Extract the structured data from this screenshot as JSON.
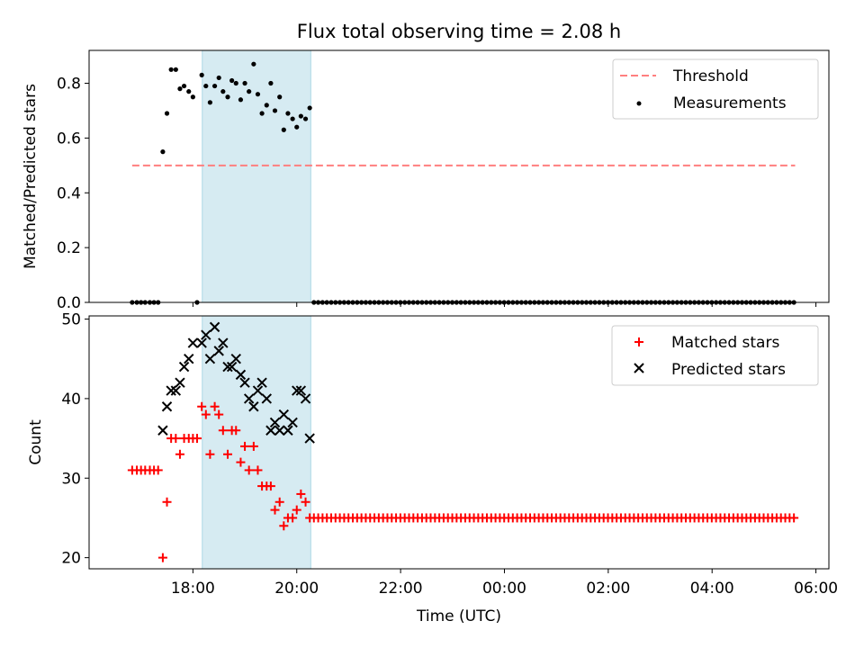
{
  "title": "Flux total observing time = 2.08 h",
  "colors": {
    "threshold": "#ff7f7f",
    "measurements": "#000000",
    "matched": "#ff0000",
    "predicted": "#000000",
    "span": "#add8e6"
  },
  "chart_data": [
    {
      "type": "scatter",
      "ylabel": "Matched/Predicted stars",
      "ylim": [
        0,
        0.92
      ],
      "yticks": [
        0.0,
        0.2,
        0.4,
        0.6,
        0.8
      ],
      "ytick_labels": [
        "0.0",
        "0.2",
        "0.4",
        "0.6",
        "0.8"
      ],
      "highlight_span": [
        18.18,
        20.27
      ],
      "legend": {
        "placement": "top-right",
        "entries": [
          "Threshold",
          "Measurements"
        ]
      },
      "threshold": {
        "name": "Threshold",
        "y": 0.5,
        "x_start": 16.83,
        "x_end": 29.6
      },
      "series": [
        {
          "name": "Measurements",
          "x": [
            16.83,
            16.92,
            17.0,
            17.08,
            17.17,
            17.25,
            17.33,
            17.42,
            17.5,
            17.58,
            17.67,
            17.75,
            17.83,
            17.92,
            18.0,
            18.08,
            18.17,
            18.25,
            18.33,
            18.42,
            18.5,
            18.58,
            18.67,
            18.75,
            18.83,
            18.92,
            19.0,
            19.08,
            19.17,
            19.25,
            19.33,
            19.42,
            19.5,
            19.58,
            19.67,
            19.75,
            19.83,
            19.92,
            20.0,
            20.08,
            20.17,
            20.25
          ],
          "y": [
            0.0,
            0.0,
            0.0,
            0.0,
            0.0,
            0.0,
            0.0,
            0.55,
            0.69,
            0.85,
            0.85,
            0.78,
            0.79,
            0.77,
            0.75,
            0.0,
            0.83,
            0.79,
            0.73,
            0.79,
            0.82,
            0.77,
            0.75,
            0.81,
            0.8,
            0.74,
            0.8,
            0.77,
            0.87,
            0.76,
            0.69,
            0.72,
            0.8,
            0.7,
            0.75,
            0.63,
            0.69,
            0.67,
            0.64,
            0.68,
            0.67,
            0.71
          ],
          "tail_zero_from": 20.33,
          "tail_zero_to": 29.58,
          "tail_step": 0.0833
        }
      ]
    },
    {
      "type": "scatter",
      "ylabel": "Count",
      "xlabel": "Time (UTC)",
      "ylim": [
        18.6,
        50.4
      ],
      "yticks": [
        20,
        30,
        40,
        50
      ],
      "ytick_labels": [
        "20",
        "30",
        "40",
        "50"
      ],
      "xlim": [
        16.0,
        30.25
      ],
      "xticks": [
        18,
        20,
        22,
        24,
        26,
        28,
        30
      ],
      "xtick_labels": [
        "18:00",
        "20:00",
        "22:00",
        "00:00",
        "02:00",
        "04:00",
        "06:00"
      ],
      "highlight_span": [
        18.18,
        20.27
      ],
      "legend": {
        "placement": "top-right",
        "entries": [
          "Matched stars",
          "Predicted stars"
        ]
      },
      "series": [
        {
          "name": "Matched stars",
          "marker": "plus",
          "x": [
            16.83,
            16.92,
            17.0,
            17.08,
            17.17,
            17.25,
            17.33,
            17.42,
            17.5,
            17.58,
            17.67,
            17.75,
            17.83,
            17.92,
            18.0,
            18.08,
            18.17,
            18.25,
            18.33,
            18.42,
            18.5,
            18.58,
            18.67,
            18.75,
            18.83,
            18.92,
            19.0,
            19.08,
            19.17,
            19.25,
            19.33,
            19.42,
            19.5,
            19.58,
            19.67,
            19.75,
            19.83,
            19.92,
            20.0,
            20.08,
            20.17,
            20.25
          ],
          "y": [
            31,
            31,
            31,
            31,
            31,
            31,
            31,
            20,
            27,
            35,
            35,
            33,
            35,
            35,
            35,
            35,
            39,
            38,
            33,
            39,
            38,
            36,
            33,
            36,
            36,
            32,
            34,
            31,
            34,
            31,
            29,
            29,
            29,
            26,
            27,
            24,
            25,
            25,
            26,
            28,
            27,
            25
          ],
          "tail_value": 25,
          "tail_from": 20.33,
          "tail_to": 29.58,
          "tail_step": 0.0833
        },
        {
          "name": "Predicted stars",
          "marker": "x",
          "x": [
            17.42,
            17.5,
            17.58,
            17.67,
            17.75,
            17.83,
            17.92,
            18.0,
            18.17,
            18.25,
            18.33,
            18.42,
            18.5,
            18.58,
            18.67,
            18.75,
            18.83,
            18.92,
            19.0,
            19.08,
            19.17,
            19.25,
            19.33,
            19.42,
            19.5,
            19.58,
            19.67,
            19.75,
            19.83,
            19.92,
            20.0,
            20.08,
            20.17,
            20.25
          ],
          "y": [
            36,
            39,
            41,
            41,
            42,
            44,
            45,
            47,
            47,
            48,
            45,
            49,
            46,
            47,
            44,
            44,
            45,
            43,
            42,
            40,
            39,
            41,
            42,
            40,
            36,
            37,
            36,
            38,
            36,
            37,
            41,
            41,
            40,
            35
          ]
        }
      ]
    }
  ]
}
